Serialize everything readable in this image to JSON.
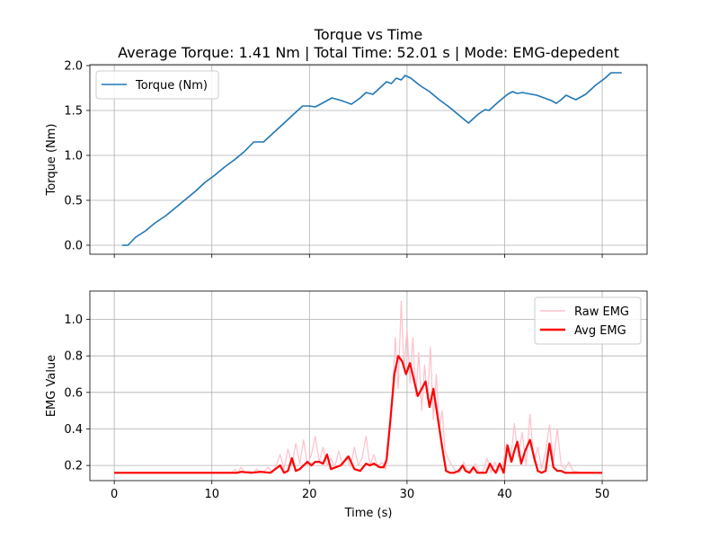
{
  "figure": {
    "title_line1": "Torque vs Time",
    "title_line2": "Average Torque: 1.41 Nm | Total Time: 52.01 s | Mode: EMG-depedent"
  },
  "colors": {
    "torque": "#1f77b4",
    "raw_emg": "#ffc0cb",
    "avg_emg": "#ff0000",
    "grid": "#b0b0b0"
  },
  "chart_data": [
    {
      "type": "line",
      "title": "Torque vs Time",
      "xlabel": "",
      "ylabel": "Torque (Nm)",
      "xlim": [
        -2.5,
        54.6
      ],
      "ylim": [
        -0.1,
        2.01
      ],
      "xticks": [
        0,
        10,
        20,
        30,
        40,
        50
      ],
      "yticks": [
        0.0,
        0.5,
        1.0,
        1.5,
        2.0
      ],
      "ytick_labels": [
        "0.0",
        "0.5",
        "1.0",
        "1.5",
        "2.0"
      ],
      "grid": true,
      "legend": "top-left",
      "series": [
        {
          "name": "Torque (Nm)",
          "x": [
            0.8,
            1.4,
            2.2,
            3.2,
            4.2,
            5.3,
            6.3,
            7.3,
            8.3,
            8.9,
            9.3,
            10.3,
            11.3,
            12.3,
            13.3,
            14.3,
            15.3,
            16.3,
            17.3,
            18.3,
            19.3,
            20.0,
            20.6,
            21.3,
            22.3,
            23.3,
            24.3,
            25.2,
            25.8,
            26.5,
            27.3,
            27.9,
            28.4,
            28.9,
            29.4,
            29.8,
            30.4,
            31.3,
            32.3,
            33.3,
            34.3,
            35.3,
            36.3,
            37.3,
            38.0,
            38.4,
            38.8,
            39.3,
            40.3,
            40.8,
            41.3,
            41.8,
            42.3,
            43.3,
            44.3,
            44.8,
            45.3,
            45.8,
            46.3,
            47.3,
            48.3,
            49.3,
            50.3,
            50.9,
            51.5,
            52.0
          ],
          "y": [
            0.0,
            0.0,
            0.09,
            0.16,
            0.25,
            0.33,
            0.42,
            0.51,
            0.6,
            0.66,
            0.7,
            0.78,
            0.87,
            0.95,
            1.04,
            1.15,
            1.15,
            1.25,
            1.35,
            1.45,
            1.55,
            1.55,
            1.54,
            1.58,
            1.64,
            1.61,
            1.57,
            1.64,
            1.7,
            1.68,
            1.76,
            1.82,
            1.8,
            1.86,
            1.84,
            1.89,
            1.86,
            1.78,
            1.71,
            1.62,
            1.54,
            1.45,
            1.36,
            1.46,
            1.51,
            1.5,
            1.54,
            1.59,
            1.68,
            1.71,
            1.69,
            1.7,
            1.69,
            1.67,
            1.63,
            1.61,
            1.58,
            1.62,
            1.67,
            1.62,
            1.68,
            1.78,
            1.86,
            1.92,
            1.92,
            1.92
          ]
        }
      ]
    },
    {
      "type": "line",
      "title": "",
      "xlabel": "Time (s)",
      "ylabel": "EMG Value",
      "xlim": [
        -2.5,
        54.6
      ],
      "ylim": [
        0.117,
        1.155
      ],
      "xticks": [
        0,
        10,
        20,
        30,
        40,
        50
      ],
      "xtick_labels": [
        "0",
        "10",
        "20",
        "30",
        "40",
        "50"
      ],
      "yticks": [
        0.2,
        0.4,
        0.6,
        0.8,
        1.0
      ],
      "ytick_labels": [
        "0.2",
        "0.4",
        "0.6",
        "0.8",
        "1.0"
      ],
      "grid": true,
      "legend": "top-right",
      "series": [
        {
          "name": "Raw EMG",
          "x": [
            0,
            4,
            8,
            12,
            12.4,
            12.6,
            13,
            13.4,
            13.8,
            14.2,
            14.6,
            15,
            15.4,
            15.8,
            16.2,
            16.6,
            17,
            17.4,
            17.8,
            18.2,
            18.6,
            19,
            19.4,
            19.8,
            20.2,
            20.6,
            21,
            21.4,
            21.8,
            22.2,
            22.6,
            23,
            23.4,
            23.8,
            24.2,
            24.6,
            25,
            25.4,
            25.8,
            26.2,
            26.6,
            27,
            27.4,
            27.8,
            28.2,
            28.5,
            28.8,
            29.1,
            29.4,
            29.7,
            30,
            30.3,
            30.6,
            30.9,
            31.2,
            31.5,
            31.8,
            32.1,
            32.4,
            32.7,
            33,
            33.3,
            33.6,
            33.9,
            34.2,
            34.6,
            35,
            35.4,
            35.8,
            36.2,
            36.6,
            37,
            37.4,
            37.8,
            38.2,
            38.6,
            39,
            39.4,
            39.8,
            40.2,
            40.6,
            41,
            41.4,
            41.8,
            42.2,
            42.6,
            43,
            43.4,
            43.8,
            44.2,
            44.6,
            45,
            45.4,
            45.8,
            46.2,
            46.6,
            47,
            48,
            50
          ],
          "y": [
            0.16,
            0.16,
            0.16,
            0.16,
            0.18,
            0.16,
            0.19,
            0.16,
            0.17,
            0.16,
            0.18,
            0.16,
            0.17,
            0.19,
            0.16,
            0.2,
            0.26,
            0.18,
            0.29,
            0.2,
            0.32,
            0.21,
            0.34,
            0.2,
            0.26,
            0.36,
            0.22,
            0.3,
            0.2,
            0.24,
            0.19,
            0.28,
            0.2,
            0.25,
            0.19,
            0.3,
            0.2,
            0.24,
            0.36,
            0.2,
            0.26,
            0.19,
            0.22,
            0.18,
            0.36,
            0.6,
            0.9,
            0.62,
            1.1,
            0.72,
            0.95,
            0.65,
            0.9,
            0.58,
            0.82,
            0.5,
            0.75,
            0.56,
            0.85,
            0.45,
            0.7,
            0.4,
            0.5,
            0.28,
            0.24,
            0.2,
            0.17,
            0.16,
            0.22,
            0.17,
            0.16,
            0.21,
            0.16,
            0.17,
            0.24,
            0.16,
            0.22,
            0.17,
            0.2,
            0.32,
            0.22,
            0.43,
            0.25,
            0.38,
            0.2,
            0.48,
            0.22,
            0.3,
            0.18,
            0.28,
            0.42,
            0.22,
            0.4,
            0.2,
            0.18,
            0.22,
            0.17,
            0.16,
            0.16
          ]
        },
        {
          "name": "Avg EMG",
          "x": [
            0,
            5,
            10,
            12.6,
            13,
            14,
            15,
            16,
            16.5,
            17,
            17.4,
            17.8,
            18.2,
            18.6,
            19,
            19.4,
            19.8,
            20.2,
            20.6,
            21,
            21.4,
            21.8,
            22.2,
            23.2,
            24,
            24.6,
            25.2,
            25.8,
            26.2,
            26.6,
            27.2,
            27.6,
            27.9,
            28.3,
            28.7,
            29.1,
            29.5,
            29.9,
            30.3,
            30.7,
            31.1,
            31.5,
            31.9,
            32.3,
            32.7,
            33.1,
            33.6,
            34,
            34.4,
            34.8,
            35.3,
            35.7,
            36,
            36.4,
            36.8,
            37.2,
            37.6,
            38.1,
            38.5,
            38.8,
            39.1,
            39.5,
            39.9,
            40.3,
            40.7,
            41,
            41.3,
            41.7,
            42.1,
            42.6,
            43,
            43.4,
            43.8,
            44.2,
            44.6,
            45,
            45.4,
            45.8,
            46.2,
            47,
            48,
            49,
            50
          ],
          "y": [
            0.16,
            0.16,
            0.16,
            0.16,
            0.165,
            0.16,
            0.165,
            0.16,
            0.18,
            0.2,
            0.16,
            0.17,
            0.24,
            0.17,
            0.18,
            0.2,
            0.22,
            0.2,
            0.22,
            0.22,
            0.21,
            0.26,
            0.18,
            0.2,
            0.25,
            0.18,
            0.17,
            0.21,
            0.2,
            0.21,
            0.19,
            0.19,
            0.23,
            0.45,
            0.7,
            0.8,
            0.77,
            0.7,
            0.76,
            0.67,
            0.58,
            0.62,
            0.66,
            0.52,
            0.62,
            0.48,
            0.3,
            0.17,
            0.16,
            0.16,
            0.17,
            0.2,
            0.17,
            0.16,
            0.19,
            0.16,
            0.16,
            0.16,
            0.21,
            0.18,
            0.16,
            0.21,
            0.16,
            0.31,
            0.22,
            0.28,
            0.33,
            0.21,
            0.28,
            0.34,
            0.25,
            0.17,
            0.16,
            0.17,
            0.32,
            0.19,
            0.17,
            0.17,
            0.16,
            0.16,
            0.16,
            0.16,
            0.16
          ]
        }
      ]
    }
  ]
}
